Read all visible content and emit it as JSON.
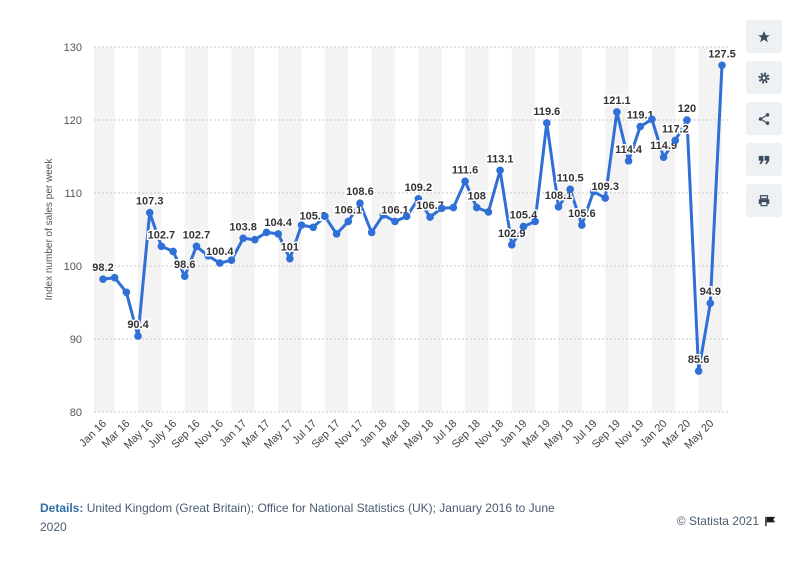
{
  "chart_data": {
    "type": "line",
    "ylabel": "Index number of sales per week",
    "xlabel": "",
    "ylim": [
      80,
      130
    ],
    "yticks": [
      80,
      90,
      100,
      110,
      120,
      130
    ],
    "grid": true,
    "color": "#2f6fd6",
    "x_tick_labels": [
      "Jan 16",
      "Mar 16",
      "May 16",
      "July 16",
      "Sep 16",
      "Nov 16",
      "Jan 17",
      "Mar 17",
      "May 17",
      "Jul 17",
      "Sep 17",
      "Nov 17",
      "Jan 18",
      "Mar 18",
      "May 18",
      "Jul 18",
      "Sep 18",
      "Nov 18",
      "Jan 19",
      "Mar 19",
      "May 19",
      "Jul 19",
      "Sep 19",
      "Nov 19",
      "Jan 20",
      "Mar 20",
      "May 20"
    ],
    "series": [
      {
        "values": [
          98.2,
          98.4,
          96.4,
          90.4,
          107.3,
          102.7,
          102.0,
          98.6,
          102.7,
          101.4,
          100.4,
          100.8,
          103.8,
          103.6,
          104.6,
          104.4,
          101.0,
          105.6,
          105.3,
          106.8,
          104.4,
          106.1,
          108.6,
          104.6,
          107.0,
          106.1,
          106.8,
          109.2,
          106.7,
          107.9,
          108.0,
          111.6,
          108.0,
          107.4,
          113.1,
          102.9,
          105.4,
          106.1,
          119.6,
          108.1,
          110.5,
          105.6,
          110.2,
          109.3,
          121.1,
          114.4,
          119.1,
          120.1,
          114.9,
          117.2,
          120.0,
          85.6,
          94.9,
          127.5
        ],
        "labels": [
          "98.2",
          "",
          "",
          "90.4",
          "107.3",
          "102.7",
          "",
          "98.6",
          "102.7",
          "",
          "100.4",
          "",
          "103.8",
          "",
          "",
          "104.4",
          "101",
          "",
          "105.3",
          "",
          "",
          "106.1",
          "108.6",
          "",
          "",
          "106.1",
          "",
          "109.2",
          "106.7",
          "",
          "",
          "111.6",
          "108",
          "",
          "113.1",
          "102.9",
          "105.4",
          "",
          "119.6",
          "108.1",
          "110.5",
          "105.6",
          "",
          "109.3",
          "121.1",
          "114.4",
          "119.1",
          "",
          "114.9",
          "117.2",
          "120",
          "85.6",
          "94.9",
          "127.5"
        ]
      }
    ]
  },
  "footer": {
    "details_label": "Details:",
    "details_text": "United Kingdom (Great Britain); Office for National Statistics (UK); January 2016 to June 2020",
    "credit": "© Statista 2021"
  },
  "toolbar": {
    "icons": [
      "star-icon",
      "gear-icon",
      "share-icon",
      "quote-icon",
      "print-icon"
    ]
  }
}
